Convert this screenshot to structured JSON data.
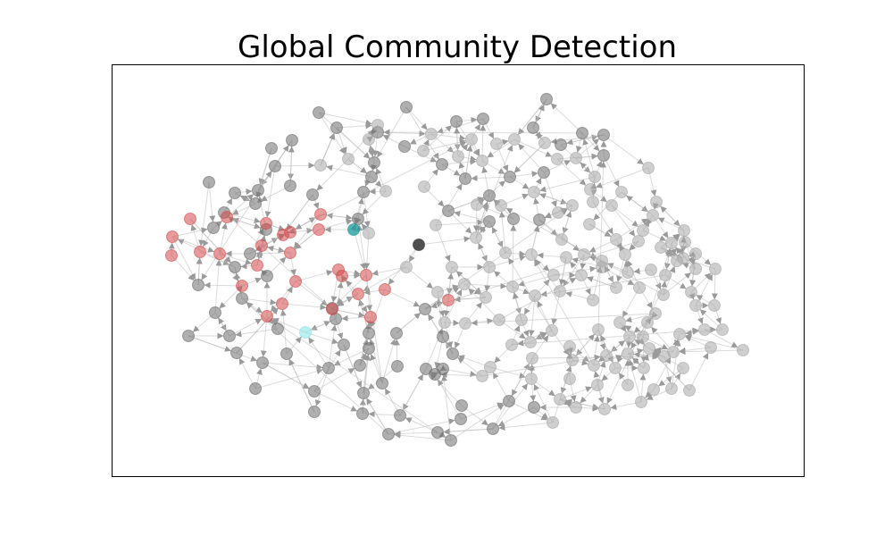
{
  "figure": {
    "title": "Global Community Detection"
  },
  "graph": {
    "directed": true,
    "node_alpha": 0.45,
    "edge_color": "#bdbdbd",
    "communities": [
      {
        "id": "dark",
        "color": "#6e6e6e"
      },
      {
        "id": "light",
        "color": "#a8a8a8"
      },
      {
        "id": "red",
        "color": "#d24b4b"
      },
      {
        "id": "teal",
        "color": "#1a9a9a"
      },
      {
        "id": "cyan",
        "color": "#7fe6e6"
      },
      {
        "id": "black",
        "color": "#333333"
      }
    ]
  }
}
